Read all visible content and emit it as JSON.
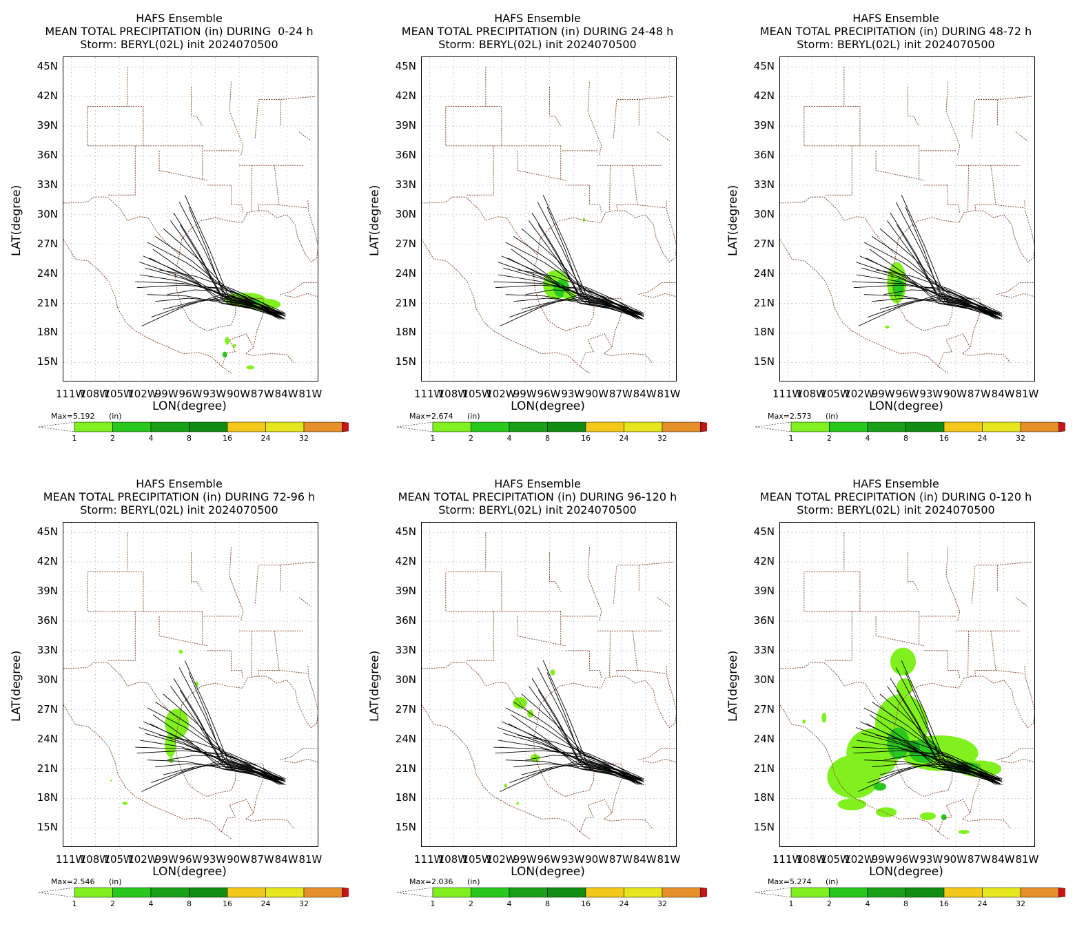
{
  "figure": {
    "ensemble_title": "HAFS Ensemble",
    "storm_line": "Storm: BERYL(02L) init 2024070500",
    "lat_ticks": [
      "45N",
      "42N",
      "39N",
      "36N",
      "33N",
      "30N",
      "27N",
      "24N",
      "21N",
      "18N",
      "15N"
    ],
    "lon_ticks": [
      "111W",
      "108W",
      "105W",
      "102W",
      "99W",
      "96W",
      "93W",
      "90W",
      "87W",
      "84W",
      "81W"
    ],
    "ylabel": "LAT(degree)",
    "xlabel": "LON(degree)",
    "unit": "(in)",
    "colorbar": {
      "ticks": [
        "1",
        "2",
        "4",
        "8",
        "16",
        "24",
        "32"
      ],
      "colors": [
        "#80f01e",
        "#28c81e",
        "#18a018",
        "#108c10",
        "#f4c818",
        "#e6e61e",
        "#e6902c",
        "#c81414"
      ]
    },
    "background_colors": {
      "border": "#8a4a2a",
      "track": "#000000",
      "grid": "#b0b0b0"
    }
  },
  "panels": [
    {
      "id": "p1",
      "heading": "MEAN TOTAL PRECIPITATION (in) DURING  0-24 h",
      "max": "Max=5.192"
    },
    {
      "id": "p2",
      "heading": "MEAN TOTAL PRECIPITATION (in) DURING 24-48 h",
      "max": "Max=2.674"
    },
    {
      "id": "p3",
      "heading": "MEAN TOTAL PRECIPITATION (in) DURING 48-72 h",
      "max": "Max=2.573"
    },
    {
      "id": "p4",
      "heading": "MEAN TOTAL PRECIPITATION (in) DURING 72-96 h",
      "max": "Max=2.546"
    },
    {
      "id": "p5",
      "heading": "MEAN TOTAL PRECIPITATION (in) DURING 96-120 h",
      "max": "Max=2.036"
    },
    {
      "id": "p6",
      "heading": "MEAN TOTAL PRECIPITATION (in) DURING 0-120 h",
      "max": "Max=5.274"
    }
  ]
}
